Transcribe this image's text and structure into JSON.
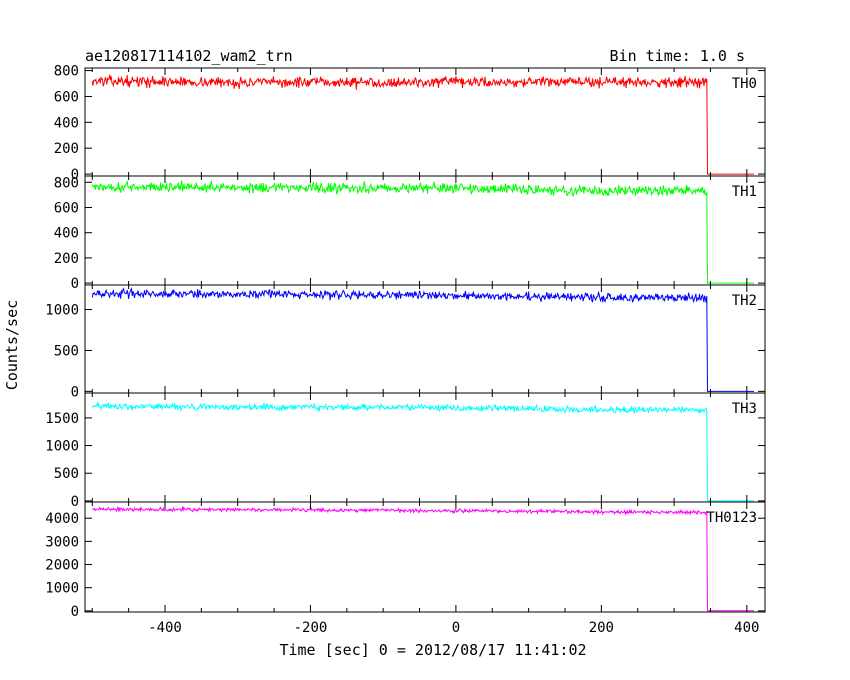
{
  "chart_data": {
    "type": "line",
    "title": "ae120817114102_wam2_trn",
    "subtitle": "Bin time: 1.0 s",
    "xlabel": "Time [sec] 0 = 2012/08/17 11:41:02",
    "ylabel": "Counts/sec",
    "xlim": [
      -510,
      425
    ],
    "x_ticks": [
      -400,
      -200,
      0,
      200,
      400
    ],
    "cutoff_time": 345,
    "panels": [
      {
        "name": "TH0",
        "color": "#ff0000",
        "ylim": [
          -15,
          820
        ],
        "y_ticks": [
          0,
          200,
          400,
          600,
          800
        ],
        "profile": [
          [
            -500,
            720
          ],
          [
            -300,
            708
          ],
          [
            0,
            710
          ],
          [
            200,
            712
          ],
          [
            343,
            712
          ]
        ],
        "noise": 28
      },
      {
        "name": "TH1",
        "color": "#00ff00",
        "ylim": [
          -15,
          850
        ],
        "y_ticks": [
          0,
          200,
          400,
          600,
          800
        ],
        "profile": [
          [
            -500,
            765
          ],
          [
            -300,
            760
          ],
          [
            0,
            755
          ],
          [
            150,
            735
          ],
          [
            343,
            730
          ]
        ],
        "noise": 28
      },
      {
        "name": "TH2",
        "color": "#0000ff",
        "ylim": [
          -20,
          1300
        ],
        "y_ticks": [
          0,
          500,
          1000
        ],
        "profile": [
          [
            -500,
            1195
          ],
          [
            -300,
            1190
          ],
          [
            0,
            1170
          ],
          [
            200,
            1150
          ],
          [
            343,
            1140
          ]
        ],
        "noise": 35
      },
      {
        "name": "TH3",
        "color": "#00ffff",
        "ylim": [
          -20,
          1950
        ],
        "y_ticks": [
          0,
          500,
          1000,
          1500
        ],
        "profile": [
          [
            -500,
            1710
          ],
          [
            -300,
            1700
          ],
          [
            0,
            1680
          ],
          [
            200,
            1650
          ],
          [
            343,
            1640
          ]
        ],
        "noise": 40
      },
      {
        "name": "TH0123",
        "color": "#ff00ff",
        "ylim": [
          -50,
          4700
        ],
        "y_ticks": [
          0,
          1000,
          2000,
          3000,
          4000
        ],
        "profile": [
          [
            -500,
            4390
          ],
          [
            -300,
            4370
          ],
          [
            0,
            4330
          ],
          [
            200,
            4270
          ],
          [
            343,
            4250
          ]
        ],
        "noise": 55
      }
    ]
  }
}
